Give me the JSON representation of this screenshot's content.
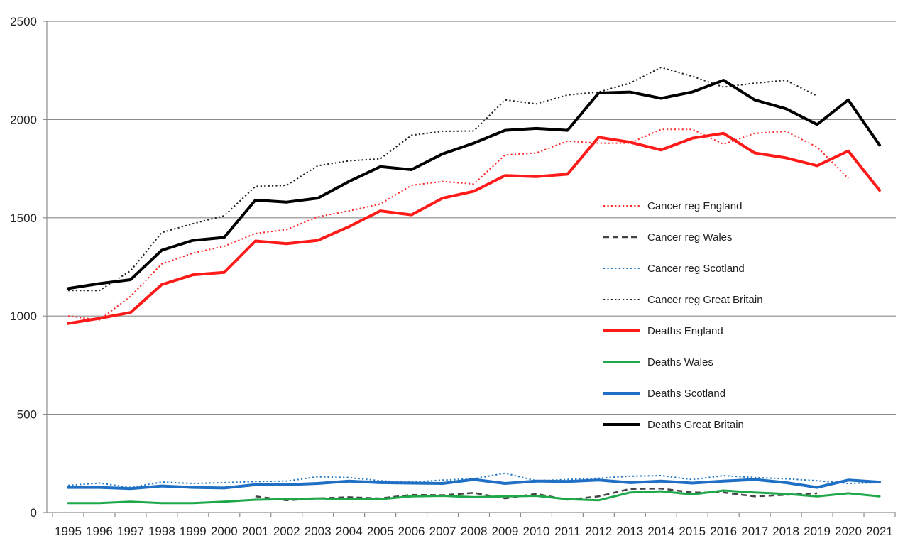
{
  "chart_data": {
    "type": "line",
    "title": "",
    "xlabel": "",
    "ylabel": "",
    "ylim": [
      0,
      2500
    ],
    "yticks": [
      0,
      500,
      1000,
      1500,
      2000,
      2500
    ],
    "grid": "horizontal",
    "legend_position": "right",
    "x": [
      "1995",
      "1996",
      "1997",
      "1998",
      "1999",
      "2000",
      "2001",
      "2002",
      "2003",
      "2004",
      "2005",
      "2006",
      "2007",
      "2008",
      "2009",
      "2010",
      "2011",
      "2012",
      "2013",
      "2014",
      "2015",
      "2016",
      "2017",
      "2018",
      "2019",
      "2020",
      "2021"
    ],
    "series": [
      {
        "name": "Cancer reg England",
        "color": "#ff2a2a",
        "style": "dotted",
        "width": 2,
        "values": [
          1000,
          980,
          1100,
          1265,
          1320,
          1355,
          1420,
          1440,
          1505,
          1535,
          1570,
          1665,
          1685,
          1672,
          1820,
          1830,
          1890,
          1880,
          1880,
          1950,
          1950,
          1875,
          1930,
          1940,
          1860,
          1700,
          null
        ]
      },
      {
        "name": "Cancer reg Wales",
        "color": "#444444",
        "style": "dashed",
        "width": 2.5,
        "values": [
          null,
          null,
          null,
          null,
          null,
          null,
          82,
          62,
          72,
          78,
          72,
          90,
          88,
          100,
          72,
          95,
          65,
          82,
          120,
          122,
          102,
          102,
          82,
          90,
          98,
          null,
          null
        ]
      },
      {
        "name": "Cancer reg Scotland",
        "color": "#1f77c4",
        "style": "dotted",
        "width": 2,
        "values": [
          138,
          150,
          128,
          155,
          148,
          152,
          158,
          160,
          182,
          178,
          162,
          155,
          165,
          172,
          200,
          162,
          168,
          175,
          185,
          188,
          168,
          188,
          178,
          172,
          162,
          148,
          152
        ]
      },
      {
        "name": "Cancer reg Great Britain",
        "color": "#222222",
        "style": "dotted",
        "width": 2,
        "values": [
          1130,
          1130,
          1230,
          1425,
          1470,
          1510,
          1660,
          1665,
          1765,
          1790,
          1800,
          1920,
          1940,
          1942,
          2100,
          2080,
          2125,
          2140,
          2185,
          2265,
          2220,
          2165,
          2185,
          2200,
          2120,
          null,
          null
        ]
      },
      {
        "name": "Deaths England",
        "color": "#ff1a1a",
        "style": "solid",
        "width": 4,
        "values": [
          962,
          988,
          1018,
          1160,
          1210,
          1222,
          1382,
          1368,
          1385,
          1455,
          1535,
          1515,
          1600,
          1635,
          1715,
          1710,
          1722,
          1910,
          1885,
          1845,
          1905,
          1930,
          1830,
          1805,
          1765,
          1840,
          1640
        ]
      },
      {
        "name": "Deaths Wales",
        "color": "#1fa84a",
        "style": "solid",
        "width": 3,
        "values": [
          48,
          48,
          55,
          48,
          48,
          55,
          65,
          68,
          72,
          68,
          68,
          82,
          85,
          78,
          82,
          85,
          68,
          62,
          102,
          108,
          92,
          112,
          102,
          95,
          82,
          98,
          82
        ]
      },
      {
        "name": "Deaths Scotland",
        "color": "#1f6fc4",
        "style": "solid",
        "width": 4,
        "values": [
          128,
          128,
          122,
          135,
          128,
          125,
          142,
          142,
          148,
          160,
          152,
          150,
          148,
          168,
          148,
          160,
          158,
          165,
          152,
          160,
          150,
          160,
          168,
          152,
          128,
          165,
          155
        ]
      },
      {
        "name": "Deaths Great Britain",
        "color": "#000000",
        "style": "solid",
        "width": 4,
        "values": [
          1140,
          1165,
          1185,
          1335,
          1385,
          1400,
          1590,
          1580,
          1600,
          1685,
          1760,
          1745,
          1825,
          1880,
          1945,
          1955,
          1945,
          2135,
          2140,
          2108,
          2140,
          2200,
          2100,
          2055,
          1975,
          2100,
          1870
        ]
      }
    ]
  }
}
